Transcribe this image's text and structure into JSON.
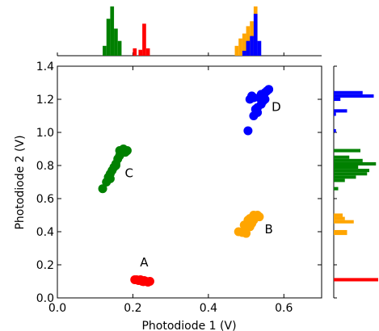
{
  "chart_data": {
    "type": "scatter",
    "xlabel": "Photodiode 1 (V)",
    "ylabel": "Photodiode 2 (V)",
    "xlim": [
      0.0,
      0.7
    ],
    "ylim": [
      0.0,
      1.4
    ],
    "x_ticks": [
      "0.0",
      "0.2",
      "0.4",
      "0.6"
    ],
    "y_ticks": [
      "0.0",
      "0.2",
      "0.4",
      "0.6",
      "0.8",
      "1.0",
      "1.2",
      "1.4"
    ],
    "grid": false,
    "legend": false,
    "colors": {
      "A": "#ff0000",
      "B": "#ffa500",
      "C": "#008000",
      "D": "#0000ff"
    },
    "marginal_histograms": [
      "top: Photodiode 1 distribution per cluster",
      "right: Photodiode 2 distribution per cluster"
    ],
    "annotations": [
      {
        "text": "A",
        "x": 0.23,
        "y": 0.19
      },
      {
        "text": "B",
        "x": 0.56,
        "y": 0.39
      },
      {
        "text": "C",
        "x": 0.19,
        "y": 0.73
      },
      {
        "text": "D",
        "x": 0.58,
        "y": 1.13
      }
    ],
    "series": [
      {
        "name": "A",
        "color": "#ff0000",
        "points": [
          [
            0.205,
            0.11
          ],
          [
            0.21,
            0.11
          ],
          [
            0.215,
            0.105
          ],
          [
            0.22,
            0.11
          ],
          [
            0.225,
            0.1
          ],
          [
            0.23,
            0.105
          ],
          [
            0.235,
            0.1
          ],
          [
            0.24,
            0.095
          ],
          [
            0.245,
            0.1
          ],
          [
            0.228,
            0.098
          ]
        ]
      },
      {
        "name": "B",
        "color": "#ffa500",
        "points": [
          [
            0.48,
            0.4
          ],
          [
            0.49,
            0.395
          ],
          [
            0.5,
            0.39
          ],
          [
            0.495,
            0.44
          ],
          [
            0.505,
            0.46
          ],
          [
            0.51,
            0.48
          ],
          [
            0.515,
            0.45
          ],
          [
            0.52,
            0.47
          ],
          [
            0.525,
            0.49
          ],
          [
            0.53,
            0.5
          ],
          [
            0.535,
            0.49
          ],
          [
            0.51,
            0.43
          ],
          [
            0.505,
            0.47
          ],
          [
            0.52,
            0.5
          ]
        ]
      },
      {
        "name": "C",
        "color": "#008000",
        "points": [
          [
            0.12,
            0.66
          ],
          [
            0.13,
            0.7
          ],
          [
            0.135,
            0.73
          ],
          [
            0.14,
            0.72
          ],
          [
            0.145,
            0.77
          ],
          [
            0.15,
            0.79
          ],
          [
            0.155,
            0.8
          ],
          [
            0.16,
            0.84
          ],
          [
            0.165,
            0.86
          ],
          [
            0.17,
            0.88
          ],
          [
            0.175,
            0.9
          ],
          [
            0.18,
            0.88
          ],
          [
            0.185,
            0.89
          ],
          [
            0.14,
            0.75
          ],
          [
            0.155,
            0.81
          ],
          [
            0.165,
            0.89
          ]
        ]
      },
      {
        "name": "D",
        "color": "#0000ff",
        "points": [
          [
            0.505,
            1.01
          ],
          [
            0.51,
            1.2
          ],
          [
            0.515,
            1.22
          ],
          [
            0.52,
            1.1
          ],
          [
            0.525,
            1.14
          ],
          [
            0.53,
            1.15
          ],
          [
            0.535,
            1.21
          ],
          [
            0.54,
            1.23
          ],
          [
            0.545,
            1.19
          ],
          [
            0.55,
            1.2
          ],
          [
            0.555,
            1.25
          ],
          [
            0.56,
            1.26
          ],
          [
            0.53,
            1.12
          ],
          [
            0.54,
            1.17
          ],
          [
            0.52,
            1.21
          ],
          [
            0.55,
            1.24
          ]
        ]
      }
    ],
    "top_histogram": [
      {
        "color": "#008000",
        "bins": [
          [
            0.12,
            0.13,
            0.2
          ],
          [
            0.13,
            0.14,
            0.75
          ],
          [
            0.14,
            0.15,
            1.0
          ],
          [
            0.15,
            0.16,
            0.55
          ],
          [
            0.16,
            0.17,
            0.3
          ]
        ]
      },
      {
        "color": "#ff0000",
        "bins": [
          [
            0.2,
            0.21,
            0.15
          ],
          [
            0.215,
            0.225,
            0.12
          ],
          [
            0.225,
            0.235,
            0.65
          ],
          [
            0.235,
            0.245,
            0.15
          ]
        ]
      },
      {
        "color": "#ffa500",
        "bins": [
          [
            0.47,
            0.48,
            0.2
          ],
          [
            0.48,
            0.49,
            0.35
          ],
          [
            0.49,
            0.5,
            0.45
          ],
          [
            0.5,
            0.51,
            0.6
          ],
          [
            0.51,
            0.52,
            0.7
          ],
          [
            0.52,
            0.53,
            1.0
          ]
        ]
      },
      {
        "color": "#0000ff",
        "bins": [
          [
            0.49,
            0.5,
            0.1
          ],
          [
            0.5,
            0.51,
            0.3
          ],
          [
            0.51,
            0.52,
            0.4
          ],
          [
            0.52,
            0.53,
            0.85
          ],
          [
            0.53,
            0.54,
            0.3
          ]
        ]
      }
    ],
    "right_histogram": [
      {
        "color": "#ff0000",
        "bins": [
          [
            0.1,
            0.12,
            1.0
          ]
        ]
      },
      {
        "color": "#ffa500",
        "bins": [
          [
            0.38,
            0.41,
            0.3
          ],
          [
            0.45,
            0.47,
            0.45
          ],
          [
            0.47,
            0.49,
            0.25
          ],
          [
            0.49,
            0.51,
            0.2
          ]
        ]
      },
      {
        "color": "#008000",
        "bins": [
          [
            0.65,
            0.67,
            0.1
          ],
          [
            0.7,
            0.72,
            0.25
          ],
          [
            0.72,
            0.74,
            0.5
          ],
          [
            0.74,
            0.76,
            0.75
          ],
          [
            0.76,
            0.78,
            0.8
          ],
          [
            0.78,
            0.8,
            0.55
          ],
          [
            0.8,
            0.82,
            0.95
          ],
          [
            0.82,
            0.84,
            0.65
          ],
          [
            0.84,
            0.86,
            0.35
          ],
          [
            0.88,
            0.9,
            0.6
          ]
        ]
      },
      {
        "color": "#0000ff",
        "bins": [
          [
            1.0,
            1.02,
            0.05
          ],
          [
            1.1,
            1.12,
            0.05
          ],
          [
            1.12,
            1.14,
            0.3
          ],
          [
            1.19,
            1.21,
            0.15
          ],
          [
            1.21,
            1.23,
            0.9
          ],
          [
            1.23,
            1.25,
            0.65
          ]
        ]
      }
    ]
  }
}
